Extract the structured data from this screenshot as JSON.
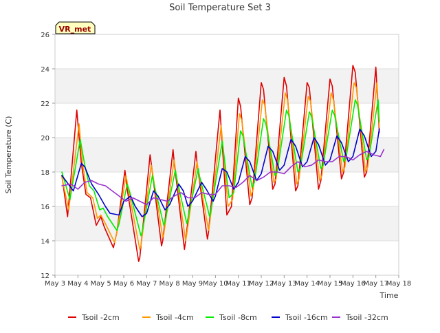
{
  "chart_data": {
    "type": "line",
    "title": "Soil Temperature Set 3",
    "xlabel": "Time",
    "ylabel": "Soil Temperature (C)",
    "xlim": [
      3,
      18
    ],
    "ylim": [
      12,
      26
    ],
    "x_ticks": [
      3,
      4,
      5,
      6,
      7,
      8,
      9,
      10,
      11,
      12,
      13,
      14,
      15,
      16,
      17,
      18
    ],
    "x_tick_labels": [
      "May 3",
      "May 4",
      "May 5",
      "May 6",
      "May 7",
      "May 8",
      "May 9",
      "May 10",
      "May 11",
      "May 12",
      "May 13",
      "May 14",
      "May 15",
      "May 16",
      "May 17",
      "May 18"
    ],
    "y_ticks": [
      12,
      14,
      16,
      18,
      20,
      22,
      24,
      26
    ],
    "grid": true,
    "legend_position": "bottom",
    "annotation": "VR_met",
    "series": [
      {
        "name": "Tsoil -2cm",
        "color": "#dd0000",
        "x": [
          3.3,
          3.55,
          3.95,
          4.15,
          4.35,
          4.55,
          4.8,
          5.0,
          5.15,
          5.55,
          5.7,
          6.05,
          6.15,
          6.65,
          6.7,
          7.15,
          7.2,
          7.65,
          7.7,
          8.15,
          8.2,
          8.65,
          8.7,
          9.15,
          9.2,
          9.65,
          9.7,
          10.2,
          10.5,
          10.7,
          11.0,
          11.1,
          11.5,
          11.6,
          12.0,
          12.1,
          12.5,
          12.6,
          13.0,
          13.1,
          13.5,
          13.6,
          14.0,
          14.1,
          14.5,
          14.6,
          15.0,
          15.1,
          15.5,
          15.6,
          16.0,
          16.1,
          16.5,
          16.6,
          17.0,
          17.15
        ],
        "y": [
          17.8,
          15.4,
          21.6,
          18.5,
          16.7,
          16.5,
          14.9,
          15.4,
          14.8,
          13.6,
          14.5,
          18.1,
          17.0,
          12.8,
          13.0,
          19.0,
          18.5,
          13.7,
          14.0,
          19.3,
          18.6,
          13.5,
          14.0,
          19.2,
          18.5,
          14.1,
          14.5,
          21.6,
          15.5,
          16.0,
          22.3,
          21.8,
          16.1,
          16.5,
          23.2,
          22.8,
          17.0,
          17.3,
          23.5,
          23.0,
          16.9,
          17.2,
          23.2,
          22.9,
          17.0,
          17.5,
          23.4,
          23.0,
          17.6,
          18.0,
          24.2,
          23.8,
          17.7,
          18.0,
          24.1,
          20.3
        ]
      },
      {
        "name": "Tsoil -4cm",
        "color": "#ff9900",
        "x": [
          3.3,
          3.6,
          4.05,
          4.2,
          4.4,
          4.65,
          4.85,
          5.0,
          5.2,
          5.6,
          5.7,
          6.1,
          6.2,
          6.7,
          6.75,
          7.2,
          7.25,
          7.7,
          7.75,
          8.2,
          8.25,
          8.7,
          8.75,
          9.2,
          9.25,
          9.7,
          9.75,
          10.25,
          10.55,
          10.75,
          11.05,
          11.15,
          11.55,
          11.65,
          12.05,
          12.15,
          12.55,
          12.65,
          13.05,
          13.15,
          13.55,
          13.65,
          14.05,
          14.15,
          14.55,
          14.65,
          15.05,
          15.15,
          15.55,
          15.65,
          16.05,
          16.15,
          16.55,
          16.65,
          17.05,
          17.15
        ],
        "y": [
          17.7,
          15.8,
          20.8,
          18.5,
          16.8,
          16.5,
          15.3,
          15.5,
          15.0,
          13.9,
          14.5,
          17.8,
          17.0,
          13.5,
          13.7,
          18.4,
          18.0,
          14.2,
          14.4,
          18.7,
          18.2,
          14.0,
          14.4,
          18.6,
          18.1,
          14.6,
          15.0,
          20.7,
          16.0,
          16.4,
          21.4,
          21.0,
          16.6,
          17.0,
          22.2,
          21.9,
          17.4,
          17.6,
          22.6,
          22.2,
          17.3,
          17.6,
          22.4,
          22.1,
          17.5,
          17.8,
          22.6,
          22.2,
          18.0,
          18.3,
          23.2,
          22.9,
          18.0,
          18.3,
          23.2,
          20.6
        ]
      },
      {
        "name": "Tsoil -8cm",
        "color": "#00ee00",
        "x": [
          3.3,
          3.65,
          4.1,
          4.3,
          4.5,
          4.7,
          4.95,
          5.1,
          5.3,
          5.7,
          5.8,
          6.15,
          6.25,
          6.75,
          6.8,
          7.25,
          7.3,
          7.75,
          7.8,
          8.25,
          8.3,
          8.75,
          8.8,
          9.25,
          9.3,
          9.75,
          9.8,
          10.3,
          10.6,
          10.8,
          11.1,
          11.2,
          11.6,
          11.7,
          12.1,
          12.2,
          12.6,
          12.7,
          13.1,
          13.2,
          13.6,
          13.7,
          14.1,
          14.2,
          14.6,
          14.7,
          15.1,
          15.2,
          15.6,
          15.7,
          16.1,
          16.2,
          16.6,
          16.7,
          17.1,
          17.15
        ],
        "y": [
          18.0,
          16.4,
          19.9,
          18.4,
          17.2,
          16.9,
          15.8,
          15.9,
          15.4,
          14.6,
          15.0,
          17.3,
          16.9,
          14.3,
          14.5,
          17.8,
          17.4,
          14.9,
          15.1,
          18.1,
          17.7,
          15.0,
          15.3,
          18.2,
          17.8,
          15.4,
          15.7,
          19.8,
          16.5,
          16.8,
          20.4,
          20.1,
          17.1,
          17.4,
          21.1,
          20.8,
          17.8,
          18.0,
          21.6,
          21.3,
          18.0,
          18.2,
          21.5,
          21.2,
          18.2,
          18.4,
          21.6,
          21.3,
          18.6,
          18.8,
          22.2,
          21.9,
          18.7,
          18.9,
          22.2,
          20.9
        ]
      },
      {
        "name": "Tsoil -16cm",
        "color": "#0000cc",
        "x": [
          3.3,
          3.8,
          4.15,
          4.3,
          4.6,
          4.9,
          5.2,
          5.4,
          5.8,
          6.0,
          6.3,
          6.5,
          6.8,
          7.0,
          7.3,
          7.5,
          7.8,
          8.0,
          8.4,
          8.6,
          8.8,
          9.0,
          9.4,
          9.6,
          9.9,
          10.0,
          10.3,
          10.5,
          10.8,
          11.0,
          11.3,
          11.5,
          11.8,
          12.0,
          12.3,
          12.5,
          12.8,
          13.0,
          13.3,
          13.5,
          13.8,
          14.0,
          14.3,
          14.5,
          14.8,
          15.0,
          15.3,
          15.5,
          15.8,
          16.0,
          16.3,
          16.5,
          16.8,
          17.0,
          17.15
        ],
        "y": [
          17.8,
          16.9,
          18.5,
          18.3,
          17.3,
          16.7,
          16.0,
          15.6,
          15.5,
          16.3,
          16.6,
          16.0,
          15.4,
          15.6,
          16.9,
          16.6,
          15.8,
          16.1,
          17.3,
          16.9,
          16.0,
          16.3,
          17.4,
          17.0,
          16.3,
          16.6,
          18.2,
          18.0,
          17.0,
          17.4,
          18.9,
          18.6,
          17.5,
          17.9,
          19.5,
          19.2,
          18.1,
          18.4,
          19.9,
          19.5,
          18.3,
          18.6,
          20.0,
          19.6,
          18.4,
          18.7,
          20.1,
          19.7,
          18.6,
          18.9,
          20.5,
          20.1,
          18.9,
          19.2,
          20.5
        ]
      },
      {
        "name": "Tsoil -32cm",
        "color": "#9933cc",
        "x": [
          3.3,
          3.7,
          4.0,
          4.3,
          4.6,
          4.9,
          5.2,
          5.5,
          5.8,
          6.1,
          6.4,
          6.7,
          7.0,
          7.3,
          7.6,
          7.9,
          8.2,
          8.5,
          8.8,
          9.1,
          9.4,
          9.7,
          10.0,
          10.3,
          10.6,
          10.9,
          11.2,
          11.5,
          11.8,
          12.1,
          12.4,
          12.7,
          13.0,
          13.3,
          13.6,
          13.9,
          14.2,
          14.5,
          14.8,
          15.1,
          15.4,
          15.7,
          16.0,
          16.3,
          16.6,
          16.9,
          17.2,
          17.35
        ],
        "y": [
          17.2,
          17.3,
          17.0,
          17.4,
          17.5,
          17.3,
          17.2,
          16.9,
          16.6,
          16.3,
          16.5,
          16.3,
          16.1,
          16.5,
          16.4,
          16.3,
          16.6,
          16.8,
          16.5,
          16.5,
          16.8,
          16.7,
          16.7,
          17.2,
          17.2,
          17.1,
          17.4,
          17.8,
          17.5,
          17.7,
          18.0,
          18.0,
          17.9,
          18.3,
          18.6,
          18.3,
          18.4,
          18.7,
          18.6,
          18.6,
          18.9,
          18.9,
          18.7,
          19.0,
          19.2,
          19.0,
          18.9,
          19.3
        ]
      }
    ]
  }
}
